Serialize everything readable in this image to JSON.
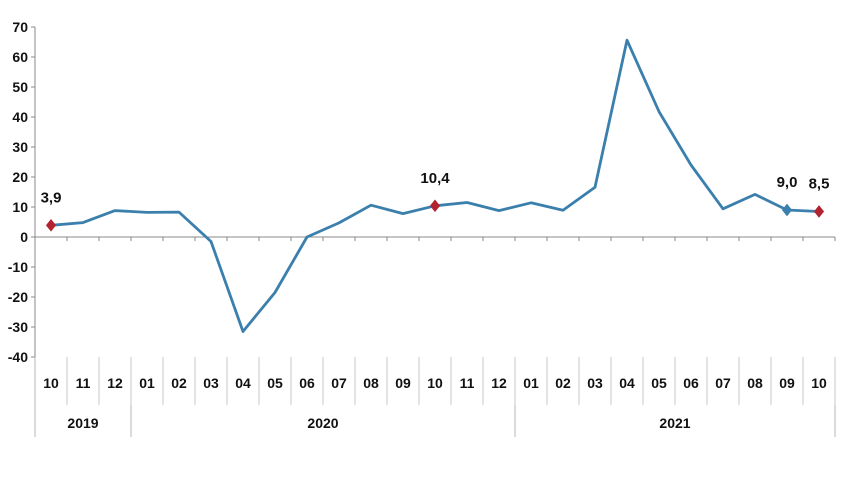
{
  "chart_data": {
    "type": "line",
    "title": "",
    "xlabel": "",
    "ylabel": "",
    "ylim": [
      -40,
      70
    ],
    "yticks": [
      70,
      60,
      50,
      40,
      30,
      20,
      10,
      0,
      -10,
      -20,
      -30,
      -40
    ],
    "grid": false,
    "categories": [
      "10",
      "11",
      "12",
      "01",
      "02",
      "03",
      "04",
      "05",
      "06",
      "07",
      "08",
      "09",
      "10",
      "11",
      "12",
      "01",
      "02",
      "03",
      "04",
      "05",
      "06",
      "07",
      "08",
      "09",
      "10"
    ],
    "year_groups": [
      {
        "label": "2019",
        "start": 0,
        "end": 2
      },
      {
        "label": "2020",
        "start": 3,
        "end": 14
      },
      {
        "label": "2021",
        "start": 15,
        "end": 24
      }
    ],
    "series": [
      {
        "values": [
          3.9,
          4.8,
          8.8,
          8.2,
          8.3,
          -1.5,
          -31.5,
          -18.5,
          0.0,
          4.7,
          10.6,
          7.8,
          10.4,
          11.5,
          8.8,
          11.4,
          8.9,
          16.6,
          65.6,
          41.8,
          24.0,
          9.4,
          14.2,
          9.0,
          8.5
        ],
        "color": "#3b7fad"
      }
    ],
    "markers": [
      {
        "index": 0,
        "label": "3,9",
        "color": "#b3232f"
      },
      {
        "index": 12,
        "label": "10,4",
        "color": "#b3232f"
      },
      {
        "index": 23,
        "label": "9,0",
        "color": "#3b7fad"
      },
      {
        "index": 24,
        "label": "8,5",
        "color": "#b3232f"
      }
    ]
  }
}
